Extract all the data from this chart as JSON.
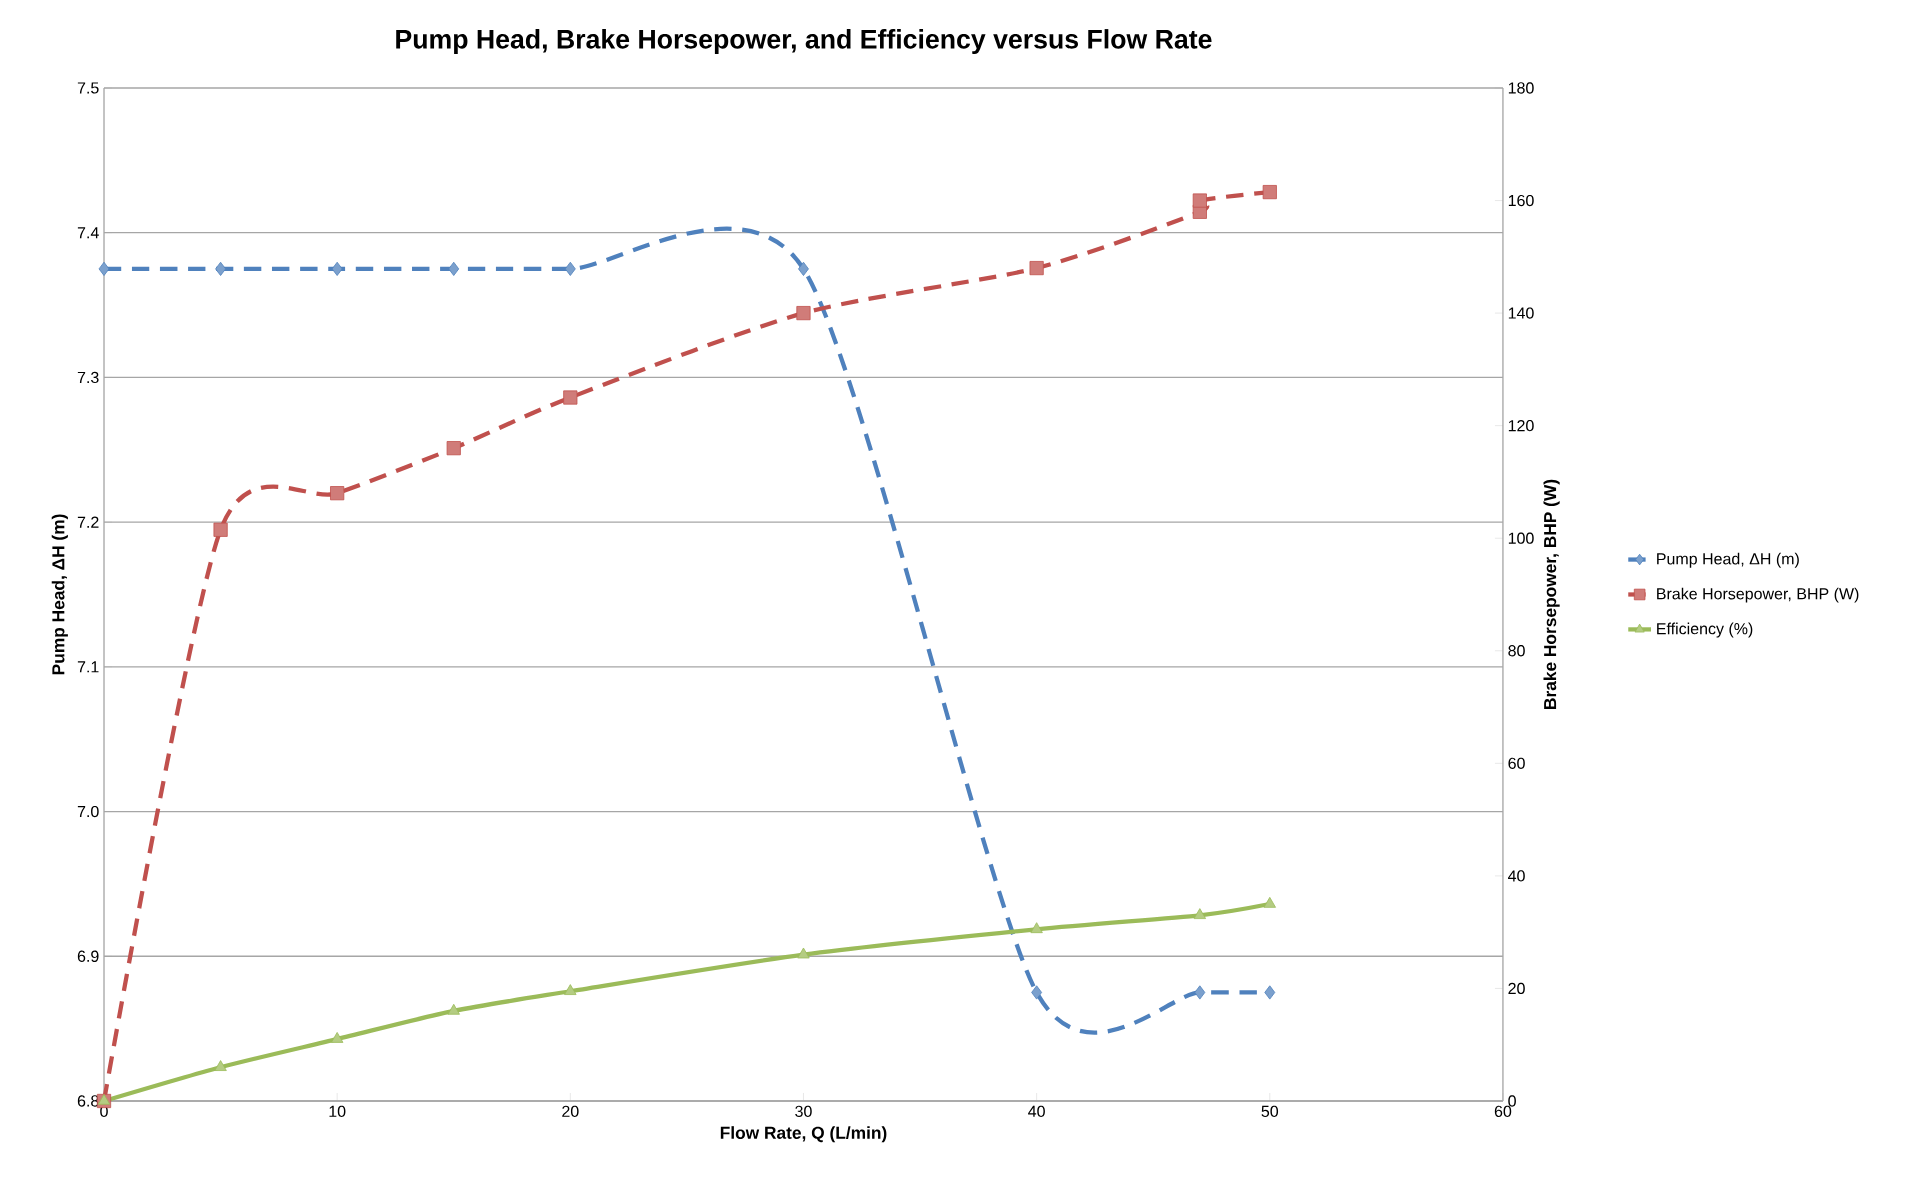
{
  "chart_data": {
    "type": "line",
    "title": "Pump Head, Brake Horsepower, and Efficiency versus Flow Rate",
    "xlabel": "Flow Rate, Q (L/min)",
    "ylabel": "Pump Head, ΔH (m)",
    "y2label": "Brake Horsepower, BHP (W)",
    "series": [
      {
        "name": "Pump Head, ΔH (m)",
        "color": "#4f81bd",
        "marker": "diamond",
        "line_style": "dashed",
        "x": [
          0,
          5,
          10,
          15,
          20,
          30,
          40,
          47,
          50
        ],
        "values": [
          7.375,
          7.375,
          7.375,
          7.375,
          7.375,
          7.375,
          6.875,
          6.875,
          6.875
        ]
      },
      {
        "name": "Brake Horsepower, BHP (W)",
        "color": "#c0504d",
        "marker": "square",
        "line_style": "dashed",
        "axis": "y2",
        "x": [
          0,
          5,
          10,
          15,
          20,
          30,
          40,
          47,
          47,
          50
        ],
        "values": [
          0,
          101.5,
          108,
          116,
          125,
          140,
          148,
          158,
          160,
          161.5
        ]
      },
      {
        "name": "Efficiency (%)",
        "color": "#9bbb59",
        "marker": "triangle",
        "line_style": "solid",
        "axis": "y2",
        "x": [
          0,
          5,
          10,
          15,
          20,
          30,
          40,
          47,
          50
        ],
        "values": [
          0,
          6,
          11,
          16,
          19.5,
          26,
          30.5,
          33,
          35
        ]
      }
    ],
    "xlim": [
      0,
      60
    ],
    "xticks": [
      0,
      10,
      20,
      30,
      40,
      50,
      60
    ],
    "ylim": [
      6.8,
      7.5
    ],
    "yticks": [
      6.8,
      6.9,
      {
        "value": 7,
        "label": "7.0"
      },
      7.1,
      7.2,
      7.3,
      7.4,
      7.5
    ],
    "y2lim": [
      0,
      180
    ],
    "y2ticks": [
      0,
      20,
      40,
      60,
      80,
      100,
      120,
      140,
      160,
      180
    ],
    "grid": "y",
    "legend": "right"
  }
}
